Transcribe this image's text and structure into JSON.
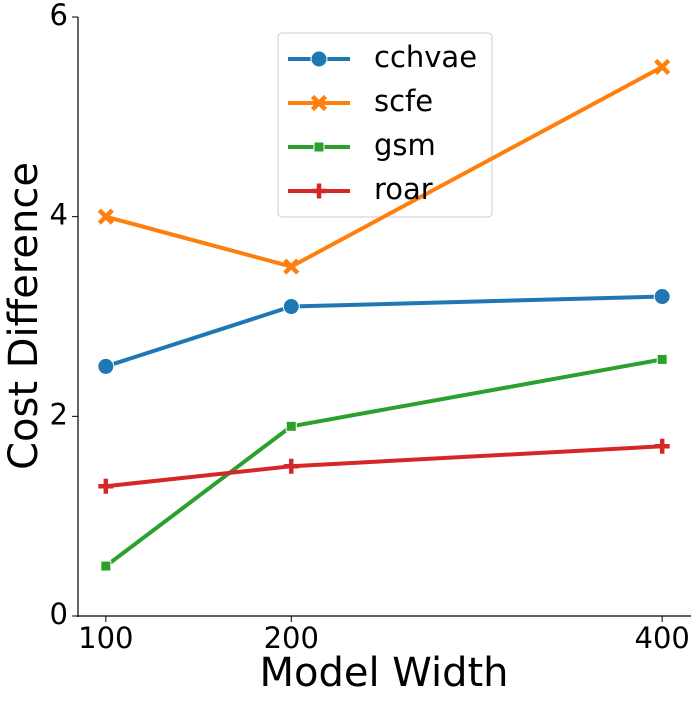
{
  "chart_data": {
    "type": "line",
    "x": [
      100,
      200,
      400
    ],
    "xlabel": "Model Width",
    "ylabel": "Cost Difference",
    "xlim": [
      85,
      415
    ],
    "ylim": [
      0,
      6
    ],
    "xticks": [
      100,
      200,
      400
    ],
    "yticks": [
      0,
      2,
      4,
      6
    ],
    "grid": false,
    "legend_position": "upper center",
    "series": [
      {
        "name": "cchvae",
        "color": "#1f77b4",
        "marker": "circle",
        "values": [
          2.5,
          3.1,
          3.2
        ]
      },
      {
        "name": "scfe",
        "color": "#ff7f0e",
        "marker": "x",
        "values": [
          4.0,
          3.5,
          5.5
        ]
      },
      {
        "name": "gsm",
        "color": "#2ca02c",
        "marker": "square",
        "values": [
          0.5,
          1.9,
          2.57
        ]
      },
      {
        "name": "roar",
        "color": "#d62728",
        "marker": "plus",
        "values": [
          1.3,
          1.5,
          1.7
        ]
      }
    ]
  }
}
